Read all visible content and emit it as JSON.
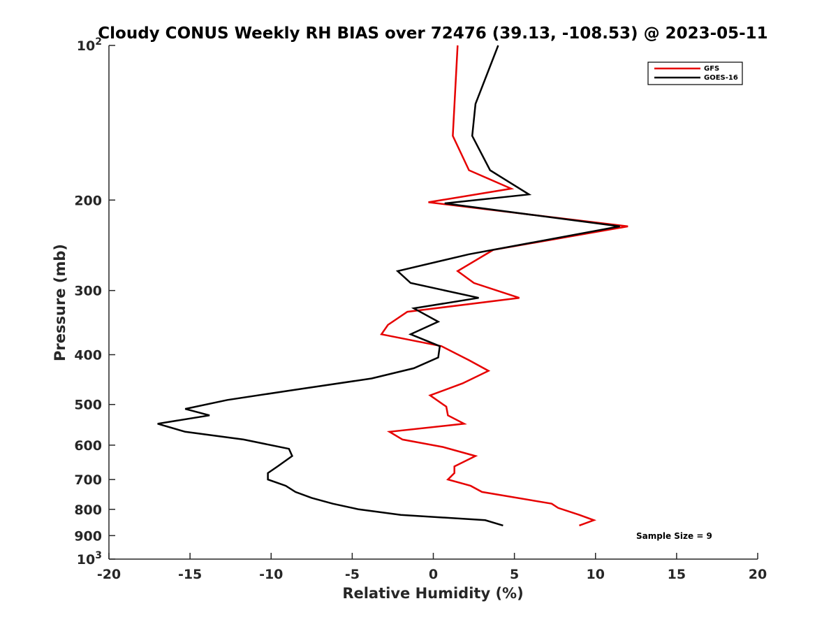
{
  "chart_data": {
    "type": "line",
    "title": "Cloudy CONUS Weekly RH BIAS over 72476 (39.13, -108.53) @ 2023-05-11",
    "xlabel": "Relative Humidity (%)",
    "ylabel": "Pressure (mb)",
    "xlim": [
      -20,
      20
    ],
    "ylim": [
      100,
      1000
    ],
    "yscale": "log",
    "y_reversed": true,
    "grid": false,
    "legend_position": "top-right",
    "x_ticks": [
      -20,
      -15,
      -10,
      -5,
      0,
      5,
      10,
      15,
      20
    ],
    "x_tick_labels": [
      "-20",
      "-15",
      "-10",
      "-5",
      "0",
      "5",
      "10",
      "15",
      "20"
    ],
    "y_ticks": [
      100,
      200,
      300,
      400,
      500,
      600,
      700,
      800,
      900,
      1000
    ],
    "y_tick_labels": [
      {
        "base": "10",
        "exp": "2"
      },
      {
        "base": "200",
        "exp": ""
      },
      {
        "base": "300",
        "exp": ""
      },
      {
        "base": "400",
        "exp": ""
      },
      {
        "base": "500",
        "exp": ""
      },
      {
        "base": "600",
        "exp": ""
      },
      {
        "base": "700",
        "exp": ""
      },
      {
        "base": "800",
        "exp": ""
      },
      {
        "base": "900",
        "exp": ""
      },
      {
        "base": "10",
        "exp": "3"
      }
    ],
    "annotation": "Sample Size = 9",
    "series": [
      {
        "name": "GFS",
        "color": "#e60000",
        "points": [
          [
            1.5,
            100
          ],
          [
            1.2,
            150
          ],
          [
            2.2,
            175
          ],
          [
            4.8,
            190
          ],
          [
            -0.3,
            202
          ],
          [
            12.0,
            225
          ],
          [
            3.7,
            250
          ],
          [
            1.5,
            275
          ],
          [
            2.5,
            290
          ],
          [
            5.3,
            310
          ],
          [
            -1.6,
            330
          ],
          [
            -2.8,
            350
          ],
          [
            -3.2,
            365
          ],
          [
            0.5,
            385
          ],
          [
            2.2,
            410
          ],
          [
            3.4,
            430
          ],
          [
            1.8,
            455
          ],
          [
            -0.2,
            480
          ],
          [
            0.8,
            505
          ],
          [
            0.9,
            525
          ],
          [
            1.9,
            545
          ],
          [
            -2.7,
            565
          ],
          [
            -1.9,
            585
          ],
          [
            0.6,
            605
          ],
          [
            2.6,
            630
          ],
          [
            1.3,
            660
          ],
          [
            1.3,
            680
          ],
          [
            0.9,
            700
          ],
          [
            2.3,
            720
          ],
          [
            3.0,
            740
          ],
          [
            7.3,
            780
          ],
          [
            7.7,
            795
          ],
          [
            9.0,
            820
          ],
          [
            9.9,
            840
          ],
          [
            9.0,
            860
          ]
        ]
      },
      {
        "name": "GOES-16",
        "color": "#000000",
        "points": [
          [
            4.0,
            100
          ],
          [
            2.6,
            130
          ],
          [
            2.4,
            150
          ],
          [
            3.5,
            175
          ],
          [
            5.9,
            195
          ],
          [
            0.7,
            203
          ],
          [
            11.5,
            225
          ],
          [
            2.2,
            255
          ],
          [
            -2.2,
            275
          ],
          [
            -1.4,
            290
          ],
          [
            2.8,
            310
          ],
          [
            -1.2,
            325
          ],
          [
            0.3,
            345
          ],
          [
            -1.4,
            365
          ],
          [
            0.4,
            385
          ],
          [
            0.3,
            405
          ],
          [
            -1.2,
            425
          ],
          [
            -3.8,
            445
          ],
          [
            -8.9,
            470
          ],
          [
            -12.7,
            490
          ],
          [
            -15.3,
            510
          ],
          [
            -13.8,
            525
          ],
          [
            -17.0,
            545
          ],
          [
            -15.3,
            565
          ],
          [
            -11.7,
            585
          ],
          [
            -8.9,
            610
          ],
          [
            -8.7,
            630
          ],
          [
            -9.6,
            660
          ],
          [
            -10.2,
            680
          ],
          [
            -10.2,
            700
          ],
          [
            -9.1,
            720
          ],
          [
            -8.5,
            740
          ],
          [
            -7.5,
            760
          ],
          [
            -6.2,
            780
          ],
          [
            -4.6,
            800
          ],
          [
            -2.0,
            820
          ],
          [
            3.2,
            840
          ],
          [
            4.3,
            860
          ]
        ]
      }
    ]
  }
}
